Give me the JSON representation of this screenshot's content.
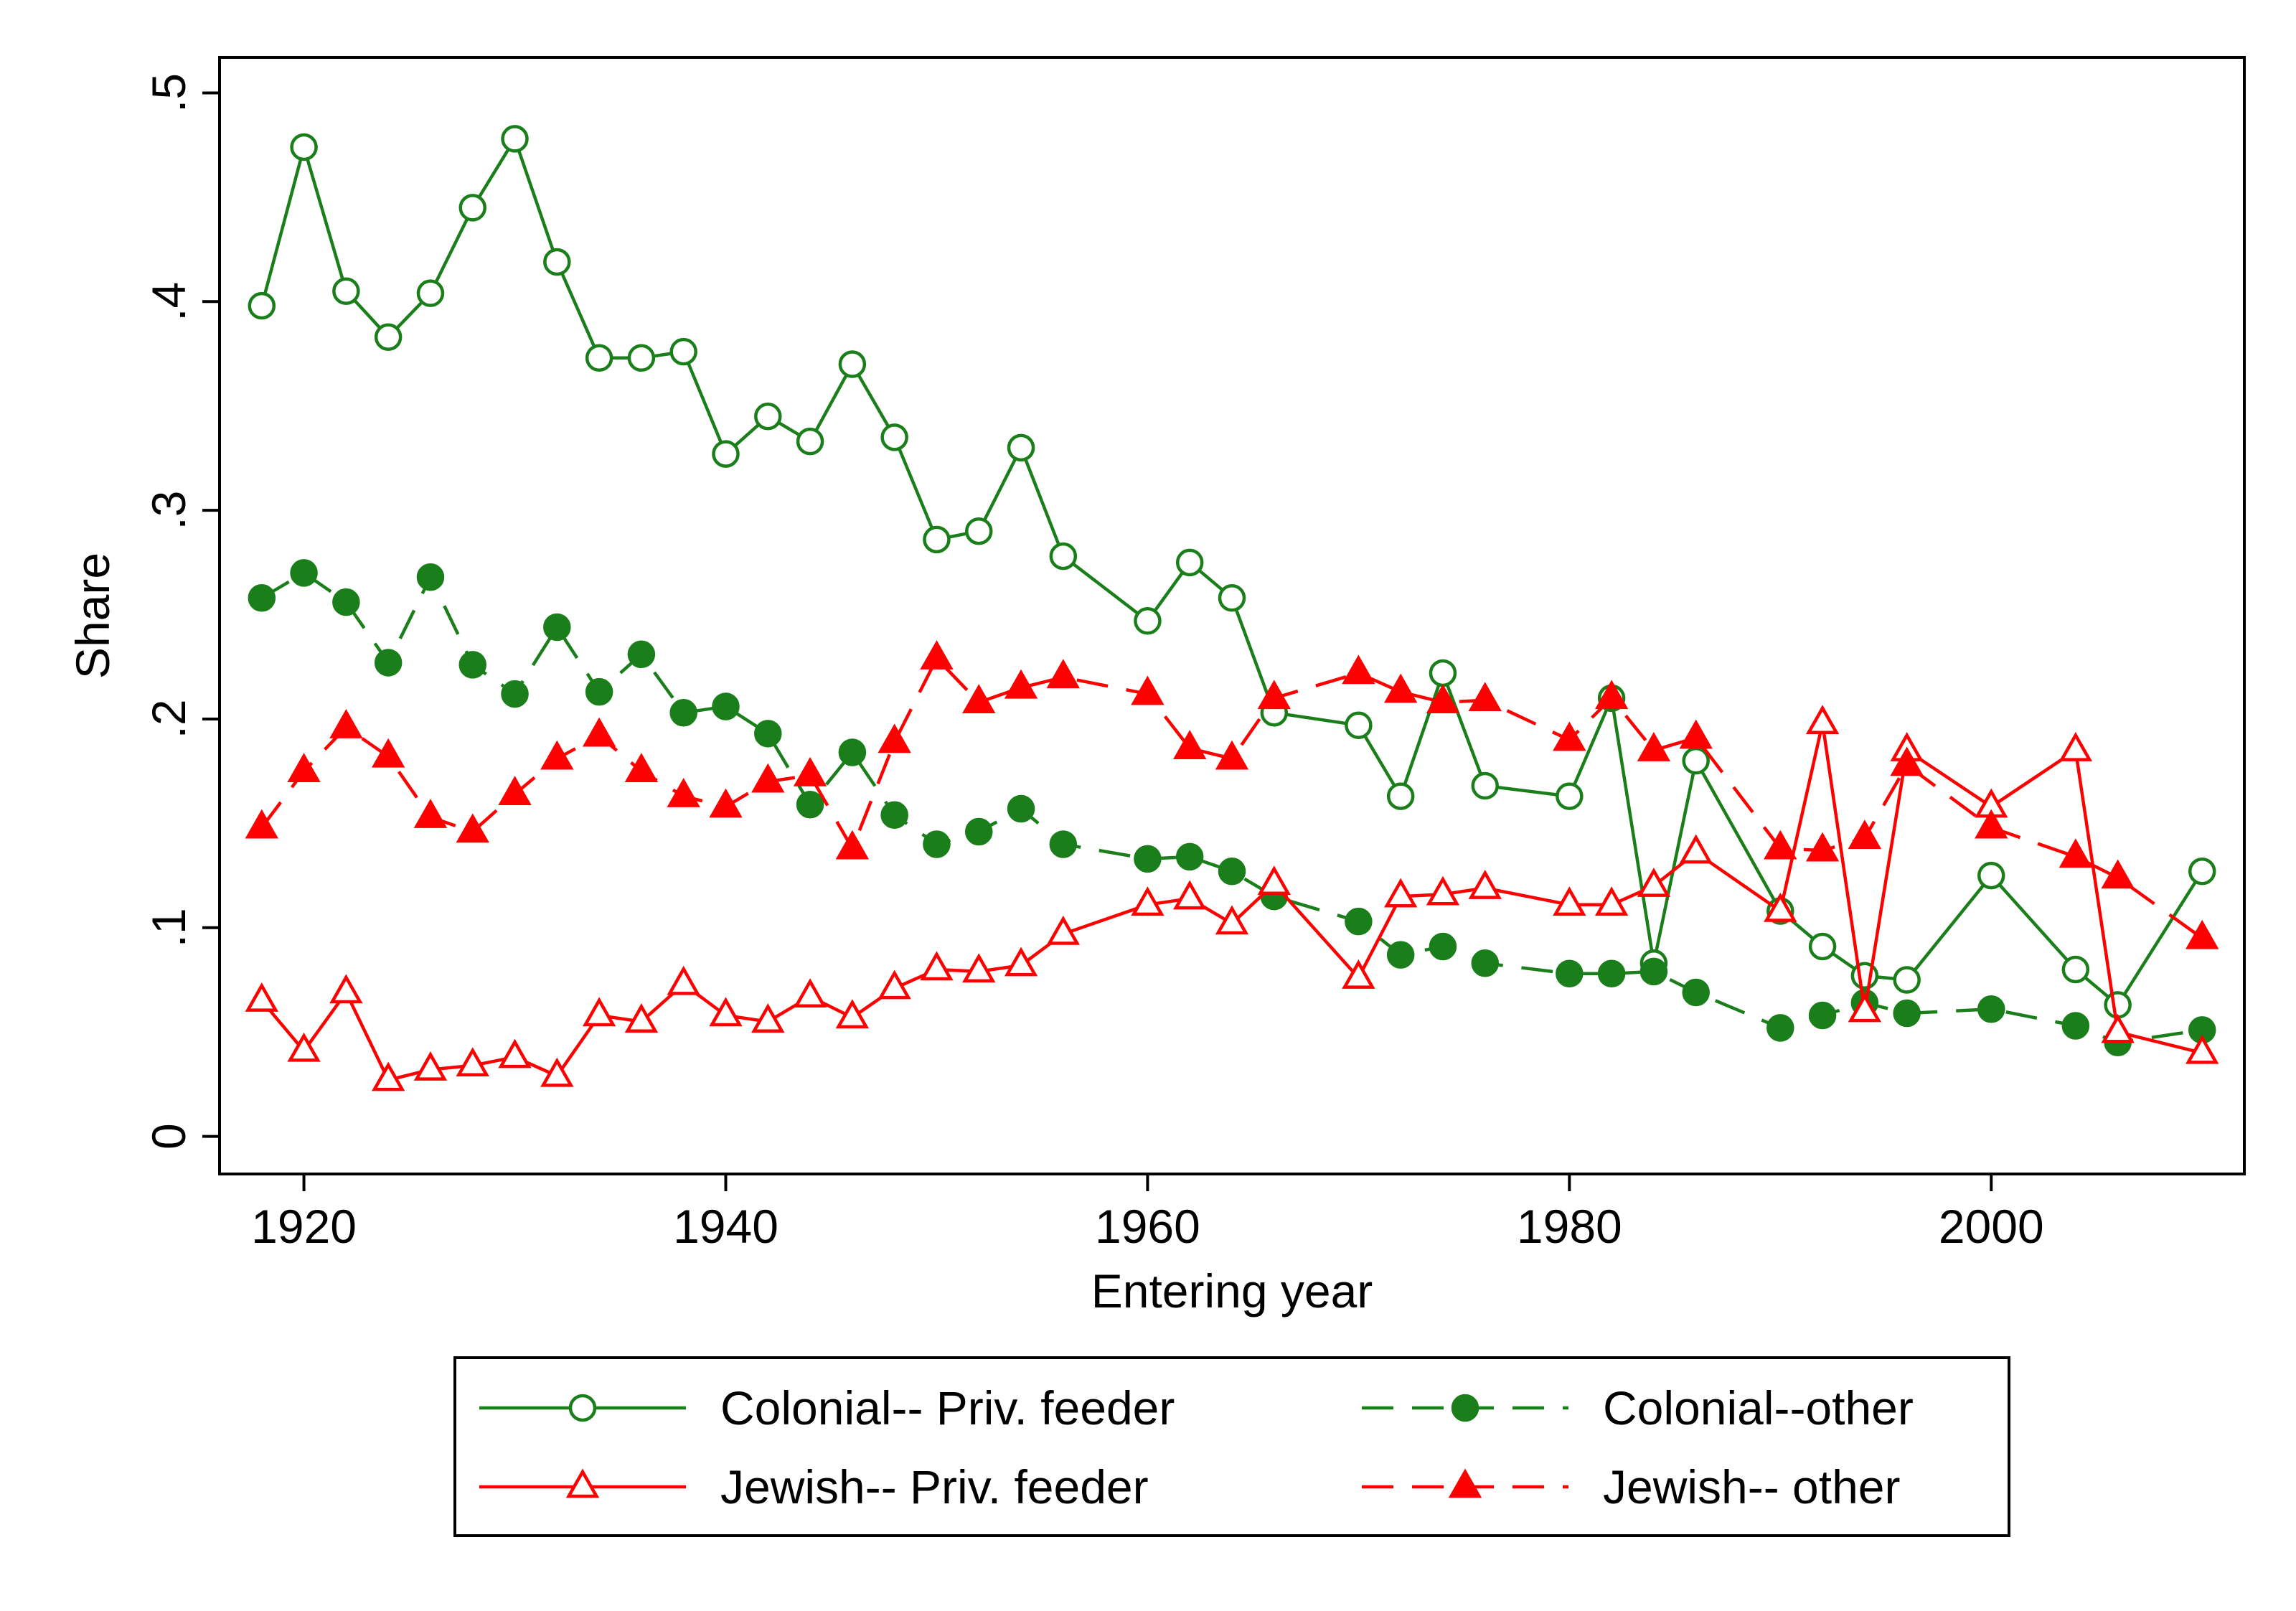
{
  "chart_data": {
    "type": "line",
    "title": "",
    "xlabel": "Entering year",
    "ylabel": "Share",
    "xlim": [
      1916,
      2012
    ],
    "ylim": [
      -0.018,
      0.517
    ],
    "xticks": [
      1920,
      1940,
      1960,
      1980,
      2000
    ],
    "xtick_labels": [
      "1920",
      "1940",
      "1960",
      "1980",
      "2000"
    ],
    "yticks": [
      0,
      0.1,
      0.2,
      0.3,
      0.4,
      0.5
    ],
    "ytick_labels": [
      "0",
      ".1",
      ".2",
      ".3",
      ".4",
      ".5"
    ],
    "grid": false,
    "legend_position": "bottom",
    "series": [
      {
        "name": "Colonial-- Priv. feeder",
        "color": "#1a7f1a",
        "line": "solid",
        "marker": "circle-open",
        "x": [
          1918,
          1920,
          1922,
          1924,
          1926,
          1928,
          1930,
          1932,
          1934,
          1936,
          1938,
          1940,
          1942,
          1944,
          1946,
          1948,
          1950,
          1952,
          1954,
          1956,
          1960,
          1962,
          1964,
          1966,
          1970,
          1972,
          1974,
          1976,
          1980,
          1982,
          1984,
          1986,
          1990,
          1992,
          1994,
          1996,
          2000,
          2004,
          2006,
          2010
        ],
        "y": [
          0.398,
          0.474,
          0.405,
          0.383,
          0.404,
          0.445,
          0.478,
          0.419,
          0.373,
          0.373,
          0.376,
          0.327,
          0.345,
          0.333,
          0.37,
          0.335,
          0.286,
          0.29,
          0.33,
          0.278,
          0.247,
          0.275,
          0.258,
          0.203,
          0.197,
          0.163,
          0.222,
          0.168,
          0.163,
          0.21,
          0.083,
          0.18,
          0.108,
          0.091,
          0.077,
          0.075,
          0.125,
          0.08,
          0.063,
          0.127
        ]
      },
      {
        "name": "Colonial--other",
        "color": "#1a7f1a",
        "line": "dashed",
        "marker": "circle-filled",
        "x": [
          1918,
          1920,
          1922,
          1924,
          1926,
          1928,
          1930,
          1932,
          1934,
          1936,
          1938,
          1940,
          1942,
          1944,
          1946,
          1948,
          1950,
          1952,
          1954,
          1956,
          1960,
          1962,
          1964,
          1966,
          1970,
          1972,
          1974,
          1976,
          1980,
          1982,
          1984,
          1986,
          1990,
          1992,
          1994,
          1996,
          2000,
          2004,
          2006,
          2010
        ],
        "y": [
          0.258,
          0.27,
          0.256,
          0.227,
          0.268,
          0.226,
          0.212,
          0.244,
          0.213,
          0.231,
          0.203,
          0.206,
          0.193,
          0.159,
          0.184,
          0.154,
          0.14,
          0.146,
          0.157,
          0.14,
          0.133,
          0.134,
          0.127,
          0.115,
          0.103,
          0.087,
          0.091,
          0.083,
          0.078,
          0.078,
          0.079,
          0.069,
          0.052,
          0.058,
          0.064,
          0.059,
          0.061,
          0.053,
          0.045,
          0.051
        ]
      },
      {
        "name": "Jewish-- Priv. feeder",
        "color": "#ff0000",
        "line": "solid",
        "marker": "triangle-open",
        "x": [
          1918,
          1920,
          1922,
          1924,
          1926,
          1928,
          1930,
          1932,
          1934,
          1936,
          1938,
          1940,
          1942,
          1944,
          1946,
          1948,
          1950,
          1952,
          1954,
          1956,
          1960,
          1962,
          1964,
          1966,
          1970,
          1972,
          1974,
          1976,
          1980,
          1982,
          1984,
          1986,
          1990,
          1992,
          1994,
          1996,
          2000,
          2004,
          2006,
          2010
        ],
        "y": [
          0.065,
          0.041,
          0.069,
          0.027,
          0.032,
          0.034,
          0.038,
          0.029,
          0.058,
          0.055,
          0.073,
          0.058,
          0.055,
          0.067,
          0.057,
          0.071,
          0.08,
          0.079,
          0.082,
          0.097,
          0.111,
          0.114,
          0.102,
          0.121,
          0.076,
          0.115,
          0.116,
          0.119,
          0.111,
          0.111,
          0.12,
          0.136,
          0.108,
          0.198,
          0.06,
          0.185,
          0.158,
          0.185,
          0.05,
          0.04
        ]
      },
      {
        "name": "Jewish-- other",
        "color": "#ff0000",
        "line": "dashed",
        "marker": "triangle-filled",
        "x": [
          1918,
          1920,
          1922,
          1924,
          1926,
          1928,
          1930,
          1932,
          1934,
          1936,
          1938,
          1940,
          1942,
          1944,
          1946,
          1948,
          1950,
          1952,
          1954,
          1956,
          1960,
          1962,
          1964,
          1966,
          1970,
          1972,
          1974,
          1976,
          1980,
          1982,
          1984,
          1986,
          1990,
          1992,
          1994,
          1996,
          2000,
          2004,
          2006,
          2010
        ],
        "y": [
          0.148,
          0.175,
          0.196,
          0.182,
          0.153,
          0.146,
          0.164,
          0.181,
          0.192,
          0.175,
          0.163,
          0.158,
          0.17,
          0.173,
          0.138,
          0.189,
          0.229,
          0.208,
          0.215,
          0.22,
          0.212,
          0.186,
          0.181,
          0.21,
          0.222,
          0.213,
          0.208,
          0.209,
          0.19,
          0.21,
          0.185,
          0.191,
          0.138,
          0.137,
          0.143,
          0.178,
          0.148,
          0.134,
          0.124,
          0.095
        ]
      }
    ]
  }
}
